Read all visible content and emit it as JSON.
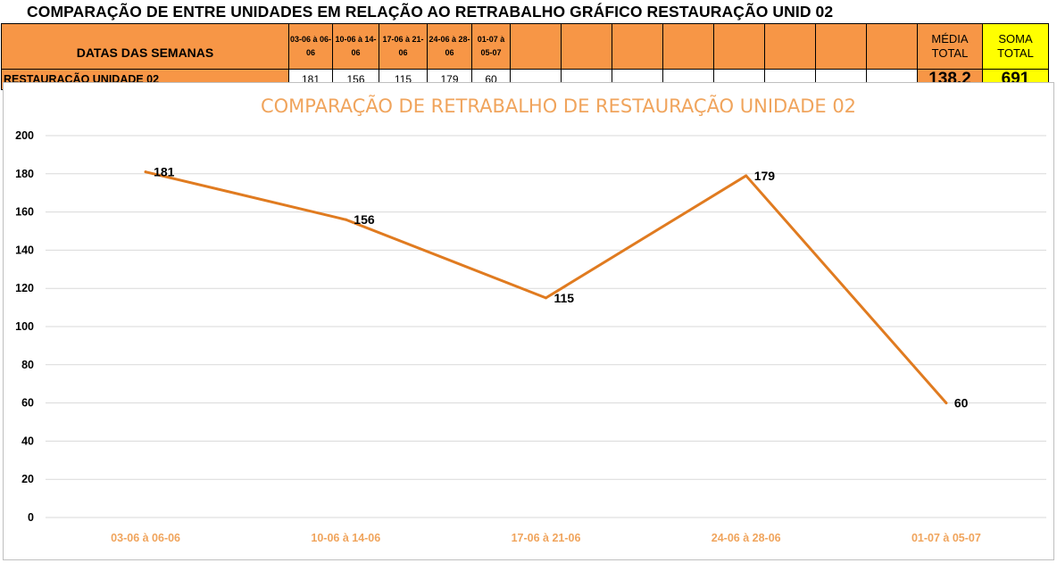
{
  "page_title": "COMPARAÇÃO DE ENTRE UNIDADES EM RELAÇÃO AO RETRABALHO GRÁFICO RESTAURAÇÃO UNID 02",
  "table": {
    "header_label": "DATAS DAS SEMANAS",
    "date_headers": [
      "03-06 à 06-06",
      "10-06 à 14-06",
      "17-06 à 21-06",
      "24-06 à 28-06",
      "01-07 à 05-07"
    ],
    "media_header": "MÉDIA TOTAL",
    "soma_header": "SOMA TOTAL",
    "row_label": "RESTAURAÇÃO UNIDADE 02",
    "values": [
      "181",
      "156",
      "115",
      "179",
      "60"
    ],
    "media_value": "138,2",
    "soma_value": "691"
  },
  "colors": {
    "header_orange": "#f79646",
    "highlight_yellow": "#ffff00",
    "line": "#e07b20",
    "title_orange": "#f0a45c",
    "grid": "#d9d9d9"
  },
  "chart_data": {
    "type": "line",
    "title": "COMPARAÇÃO DE RETRABALHO DE RESTAURAÇÃO UNIDADE 02",
    "categories": [
      "03-06 à 06-06",
      "10-06 à 14-06",
      "17-06 à  21-06",
      "24-06 à 28-06",
      "01-07 à 05-07"
    ],
    "series": [
      {
        "values": [
          181,
          156,
          115,
          179,
          60
        ]
      }
    ],
    "ylim": [
      0,
      200
    ],
    "yticks": [
      0,
      20,
      40,
      60,
      80,
      100,
      120,
      140,
      160,
      180,
      200
    ],
    "grid": true,
    "legend": "none",
    "data_labels": true
  }
}
